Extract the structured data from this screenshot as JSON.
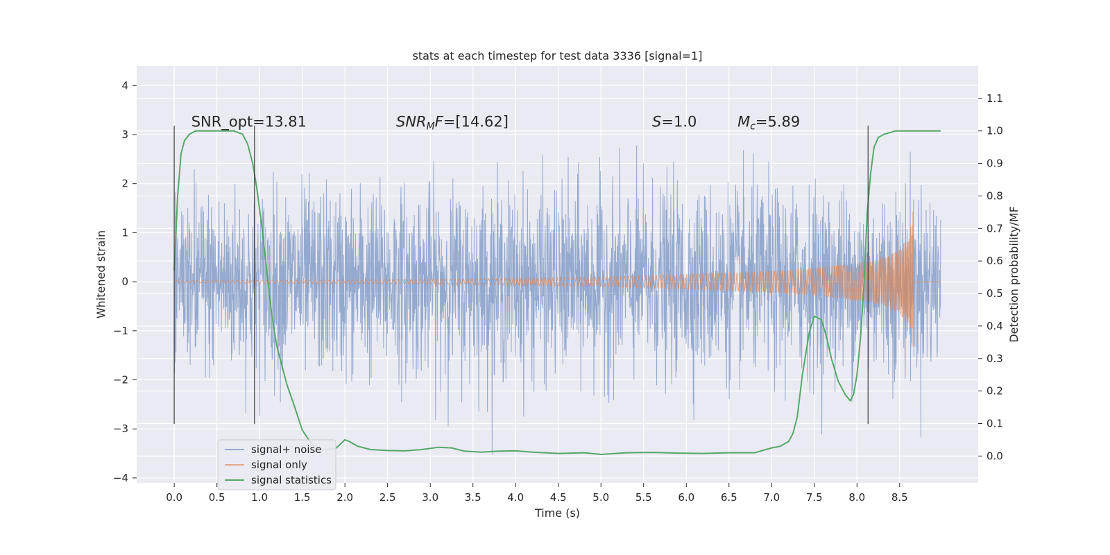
{
  "chart_data": {
    "type": "line",
    "title": "stats at each timestep for test data 3336 [signal=1]",
    "xlabel": "Time (s)",
    "ylabel": "Whitened strain",
    "y2label": "Detection probability/MF",
    "xlim": [
      -0.44,
      9.42
    ],
    "ylim": [
      -4.1,
      4.4
    ],
    "y2lim": [
      -0.0825,
      1.2
    ],
    "x_ticks": [
      "0.0",
      "0.5",
      "1.0",
      "1.5",
      "2.0",
      "2.5",
      "3.0",
      "3.5",
      "4.0",
      "4.5",
      "5.0",
      "5.5",
      "6.0",
      "6.5",
      "7.0",
      "7.5",
      "8.0",
      "8.5"
    ],
    "y_ticks": [
      "4",
      "3",
      "2",
      "1",
      "0",
      "−1",
      "−2",
      "−3",
      "−4"
    ],
    "y2_ticks": [
      "0.0",
      "0.1",
      "0.2",
      "0.3",
      "0.4",
      "0.5",
      "0.6",
      "0.7",
      "0.8",
      "0.9",
      "1.0",
      "1.1"
    ],
    "grid": true,
    "legend_position": "lower-left",
    "annotations": [
      {
        "key": "snr_opt",
        "text": "SNR_opt=13.81",
        "x": 0.2,
        "y": 3.16
      },
      {
        "key": "snr_mf",
        "text": "SNR_MF=[14.62]",
        "x": 2.6,
        "y": 3.16
      },
      {
        "key": "s",
        "text": "S=1.0",
        "x": 5.6,
        "y": 3.16
      },
      {
        "key": "mc",
        "text": "M_c=5.89",
        "x": 6.6,
        "y": 3.16
      }
    ],
    "vlines": [
      0.0,
      0.94,
      8.13
    ],
    "series": [
      {
        "name": "signal+ noise",
        "color": "#4c72b0",
        "axis": "left",
        "noise_sigma": 0.75,
        "x_range": [
          0.0,
          8.98
        ]
      },
      {
        "name": "signal only",
        "color": "#dd8452",
        "axis": "left",
        "envelope": {
          "x": [
            0.0,
            3.0,
            5.0,
            6.0,
            7.0,
            7.5,
            8.0,
            8.3,
            8.5,
            8.6,
            8.65
          ],
          "amp": [
            0.02,
            0.05,
            0.1,
            0.15,
            0.22,
            0.28,
            0.38,
            0.48,
            0.65,
            0.95,
            1.45
          ]
        },
        "chirp_end": 8.66,
        "x_range": [
          0.0,
          8.98
        ]
      },
      {
        "name": "signal statistics",
        "color": "#55a868",
        "axis": "right",
        "x": [
          0.0,
          0.04,
          0.08,
          0.12,
          0.18,
          0.25,
          0.35,
          0.5,
          0.6,
          0.7,
          0.8,
          0.86,
          0.92,
          0.97,
          1.02,
          1.08,
          1.14,
          1.2,
          1.26,
          1.32,
          1.4,
          1.5,
          1.6,
          1.65,
          1.72,
          1.8,
          1.9,
          2.0,
          2.05,
          2.15,
          2.3,
          2.5,
          2.7,
          2.9,
          3.1,
          3.25,
          3.4,
          3.6,
          3.8,
          4.0,
          4.2,
          4.5,
          4.8,
          5.0,
          5.3,
          5.6,
          5.9,
          6.2,
          6.5,
          6.8,
          7.0,
          7.1,
          7.2,
          7.25,
          7.3,
          7.36,
          7.44,
          7.5,
          7.58,
          7.64,
          7.7,
          7.78,
          7.86,
          7.92,
          7.96,
          8.0,
          8.04,
          8.08,
          8.12,
          8.16,
          8.2,
          8.25,
          8.32,
          8.45,
          8.6,
          8.8,
          8.98
        ],
        "y": [
          0.57,
          0.8,
          0.93,
          0.97,
          0.99,
          1.0,
          1.0,
          1.0,
          1.0,
          1.0,
          0.99,
          0.96,
          0.9,
          0.82,
          0.72,
          0.58,
          0.44,
          0.34,
          0.28,
          0.22,
          0.16,
          0.08,
          0.04,
          0.03,
          0.02,
          0.02,
          0.025,
          0.05,
          0.045,
          0.03,
          0.02,
          0.017,
          0.016,
          0.02,
          0.027,
          0.025,
          0.015,
          0.012,
          0.015,
          0.016,
          0.012,
          0.008,
          0.01,
          0.005,
          0.01,
          0.011,
          0.009,
          0.008,
          0.01,
          0.01,
          0.025,
          0.03,
          0.045,
          0.07,
          0.12,
          0.25,
          0.38,
          0.43,
          0.42,
          0.37,
          0.3,
          0.23,
          0.19,
          0.17,
          0.19,
          0.25,
          0.36,
          0.52,
          0.75,
          0.87,
          0.95,
          0.98,
          0.99,
          1.0,
          1.0,
          1.0,
          1.0
        ]
      }
    ]
  }
}
